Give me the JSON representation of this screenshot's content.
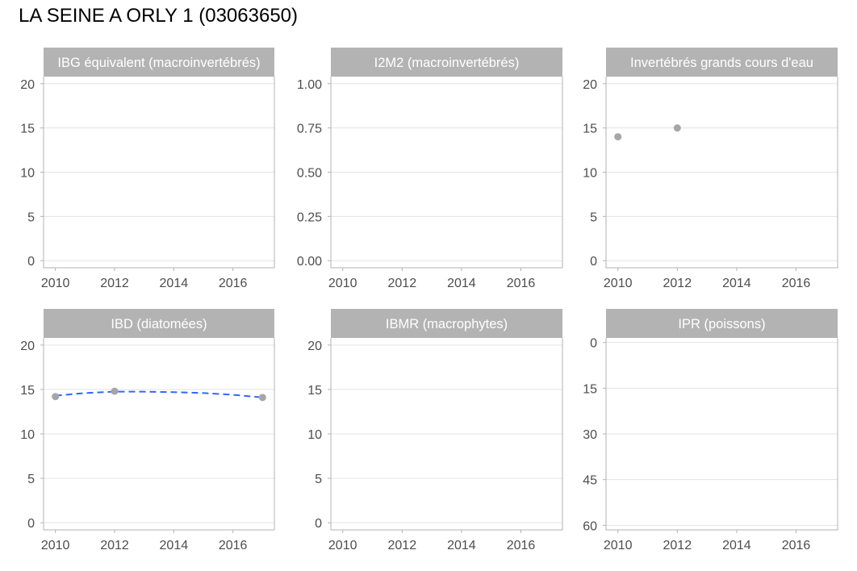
{
  "title": "LA SEINE A ORLY 1 (03063650)",
  "colors": {
    "strip_background": "#b3b3b3",
    "strip_text": "#ffffff",
    "panel_border": "#b3b3b3",
    "gridline": "#e3e3e3",
    "point": "#a6a6a6",
    "trend_line": "#3366ff",
    "tick_text": "#4d4d4d"
  },
  "chart_data": [
    {
      "type": "scatter",
      "title": "IBG équivalent (macroinvertébrés)",
      "xlabel": "",
      "ylabel": "",
      "xlim": [
        2009.6,
        2017.4
      ],
      "ylim": [
        -0.8,
        20.8
      ],
      "x_ticks": [
        2010,
        2012,
        2014,
        2016
      ],
      "y_ticks": [
        0,
        5,
        10,
        15,
        20
      ],
      "y_tick_labels": [
        "0",
        "5",
        "10",
        "15",
        "20"
      ],
      "y_reversed": false,
      "grid": true,
      "points": []
    },
    {
      "type": "scatter",
      "title": "I2M2 (macroinvertébrés)",
      "xlabel": "",
      "ylabel": "",
      "xlim": [
        2009.6,
        2017.4
      ],
      "ylim": [
        -0.04,
        1.04
      ],
      "x_ticks": [
        2010,
        2012,
        2014,
        2016
      ],
      "y_ticks": [
        0,
        0.25,
        0.5,
        0.75,
        1
      ],
      "y_tick_labels": [
        "0.00",
        "0.25",
        "0.50",
        "0.75",
        "1.00"
      ],
      "y_reversed": false,
      "grid": true,
      "points": []
    },
    {
      "type": "scatter",
      "title": "Invertébrés grands cours d'eau",
      "xlabel": "",
      "ylabel": "",
      "xlim": [
        2009.6,
        2017.4
      ],
      "ylim": [
        -0.8,
        20.8
      ],
      "x_ticks": [
        2010,
        2012,
        2014,
        2016
      ],
      "y_ticks": [
        0,
        5,
        10,
        15,
        20
      ],
      "y_tick_labels": [
        "0",
        "5",
        "10",
        "15",
        "20"
      ],
      "y_reversed": false,
      "grid": true,
      "points": [
        {
          "x": 2010,
          "y": 14.0
        },
        {
          "x": 2012,
          "y": 15.0
        }
      ]
    },
    {
      "type": "scatter",
      "title": "IBD (diatomées)",
      "xlabel": "",
      "ylabel": "",
      "xlim": [
        2009.6,
        2017.4
      ],
      "ylim": [
        -0.8,
        20.8
      ],
      "x_ticks": [
        2010,
        2012,
        2014,
        2016
      ],
      "y_ticks": [
        0,
        5,
        10,
        15,
        20
      ],
      "y_tick_labels": [
        "0",
        "5",
        "10",
        "15",
        "20"
      ],
      "y_reversed": false,
      "grid": true,
      "points": [
        {
          "x": 2010,
          "y": 14.2
        },
        {
          "x": 2012,
          "y": 14.8
        },
        {
          "x": 2017,
          "y": 14.1
        }
      ],
      "trend": {
        "style": "dashed",
        "x": [
          2010,
          2011,
          2012,
          2013,
          2014,
          2015,
          2016,
          2017
        ],
        "y": [
          14.3,
          14.6,
          14.75,
          14.75,
          14.7,
          14.6,
          14.4,
          14.1
        ]
      }
    },
    {
      "type": "scatter",
      "title": "IBMR (macrophytes)",
      "xlabel": "",
      "ylabel": "",
      "xlim": [
        2009.6,
        2017.4
      ],
      "ylim": [
        -0.8,
        20.8
      ],
      "x_ticks": [
        2010,
        2012,
        2014,
        2016
      ],
      "y_ticks": [
        0,
        5,
        10,
        15,
        20
      ],
      "y_tick_labels": [
        "0",
        "5",
        "10",
        "15",
        "20"
      ],
      "y_reversed": false,
      "grid": true,
      "points": []
    },
    {
      "type": "scatter",
      "title": "IPR (poissons)",
      "xlabel": "",
      "ylabel": "",
      "xlim": [
        2009.6,
        2017.4
      ],
      "ylim": [
        -1.5,
        61.5
      ],
      "x_ticks": [
        2010,
        2012,
        2014,
        2016
      ],
      "y_ticks": [
        0,
        15,
        30,
        45,
        60
      ],
      "y_tick_labels": [
        "0",
        "15",
        "30",
        "45",
        "60"
      ],
      "y_reversed": true,
      "grid": true,
      "points": []
    }
  ]
}
